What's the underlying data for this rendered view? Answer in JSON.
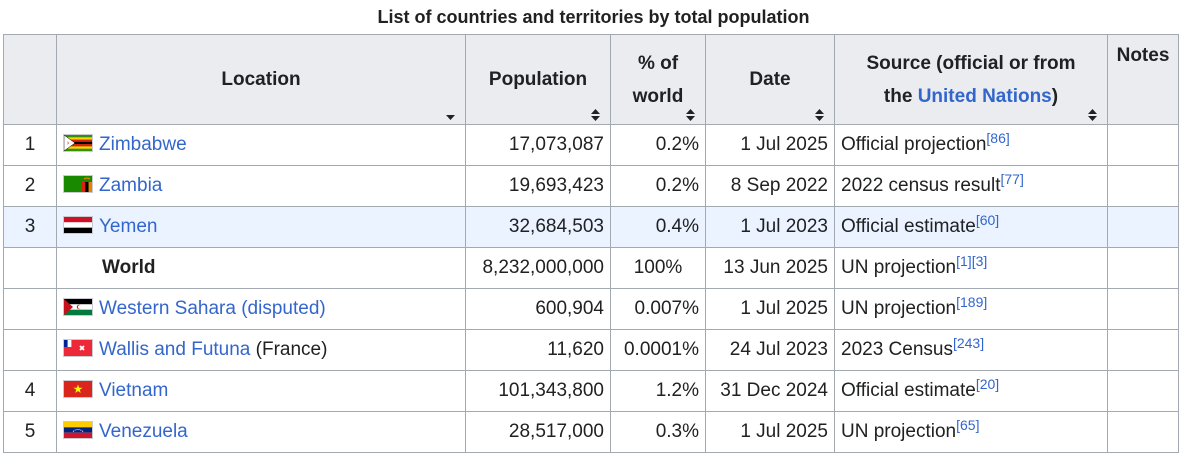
{
  "caption": "List of countries and territories by total population",
  "headers": {
    "location": "Location",
    "population": "Population",
    "pct_line1": "% of",
    "pct_line2": "world",
    "date": "Date",
    "source_line1": "Source (official or from",
    "source_the": "the ",
    "source_link": "United Nations",
    "source_close": ")",
    "notes": "Notes"
  },
  "rows": [
    {
      "rank": "1",
      "flag": "zimbabwe-flag-icon",
      "name": "Zimbabwe",
      "suffix": "",
      "population": "17,073,087",
      "pct": "0.2%",
      "date": "1 Jul 2025",
      "source": "Official projection",
      "refs": "[86]"
    },
    {
      "rank": "2",
      "flag": "zambia-flag-icon",
      "name": "Zambia",
      "suffix": "",
      "population": "19,693,423",
      "pct": "0.2%",
      "date": "8 Sep 2022",
      "source": "2022 census result",
      "refs": "[77]"
    },
    {
      "rank": "3",
      "flag": "yemen-flag-icon",
      "name": "Yemen",
      "suffix": "",
      "population": "32,684,503",
      "pct": "0.4%",
      "date": "1 Jul 2023",
      "source": "Official estimate",
      "refs": "[60]"
    },
    {
      "rank": "",
      "flag": "",
      "name": "World",
      "suffix": "",
      "population": "8,232,000,000",
      "pct": "100%",
      "date": "13 Jun 2025",
      "source": "UN projection",
      "refs": "[1][3]"
    },
    {
      "rank": "",
      "flag": "western-sahara-flag-icon",
      "name": "Western Sahara (disputed)",
      "suffix": "",
      "population": "600,904",
      "pct": "0.007%",
      "date": "1 Jul 2025",
      "source": "UN projection",
      "refs": "[189]"
    },
    {
      "rank": "",
      "flag": "wallis-and-futuna-flag-icon",
      "name": "Wallis and Futuna",
      "suffix": " (France)",
      "population": "11,620",
      "pct": "0.0001%",
      "date": "24 Jul 2023",
      "source": "2023 Census",
      "refs": "[243]"
    },
    {
      "rank": "4",
      "flag": "vietnam-flag-icon",
      "name": "Vietnam",
      "suffix": "",
      "population": "101,343,800",
      "pct": "1.2%",
      "date": "31 Dec 2024",
      "source": "Official estimate",
      "refs": "[20]"
    },
    {
      "rank": "5",
      "flag": "venezuela-flag-icon",
      "name": "Venezuela",
      "suffix": "",
      "population": "28,517,000",
      "pct": "0.3%",
      "date": "1 Jul 2025",
      "source": "UN projection",
      "refs": "[65]"
    }
  ],
  "colors": {
    "link": "#3366cc",
    "header_bg": "#eaecf0",
    "border": "#a2a9b1",
    "highlight_row": "#eaf3ff"
  }
}
